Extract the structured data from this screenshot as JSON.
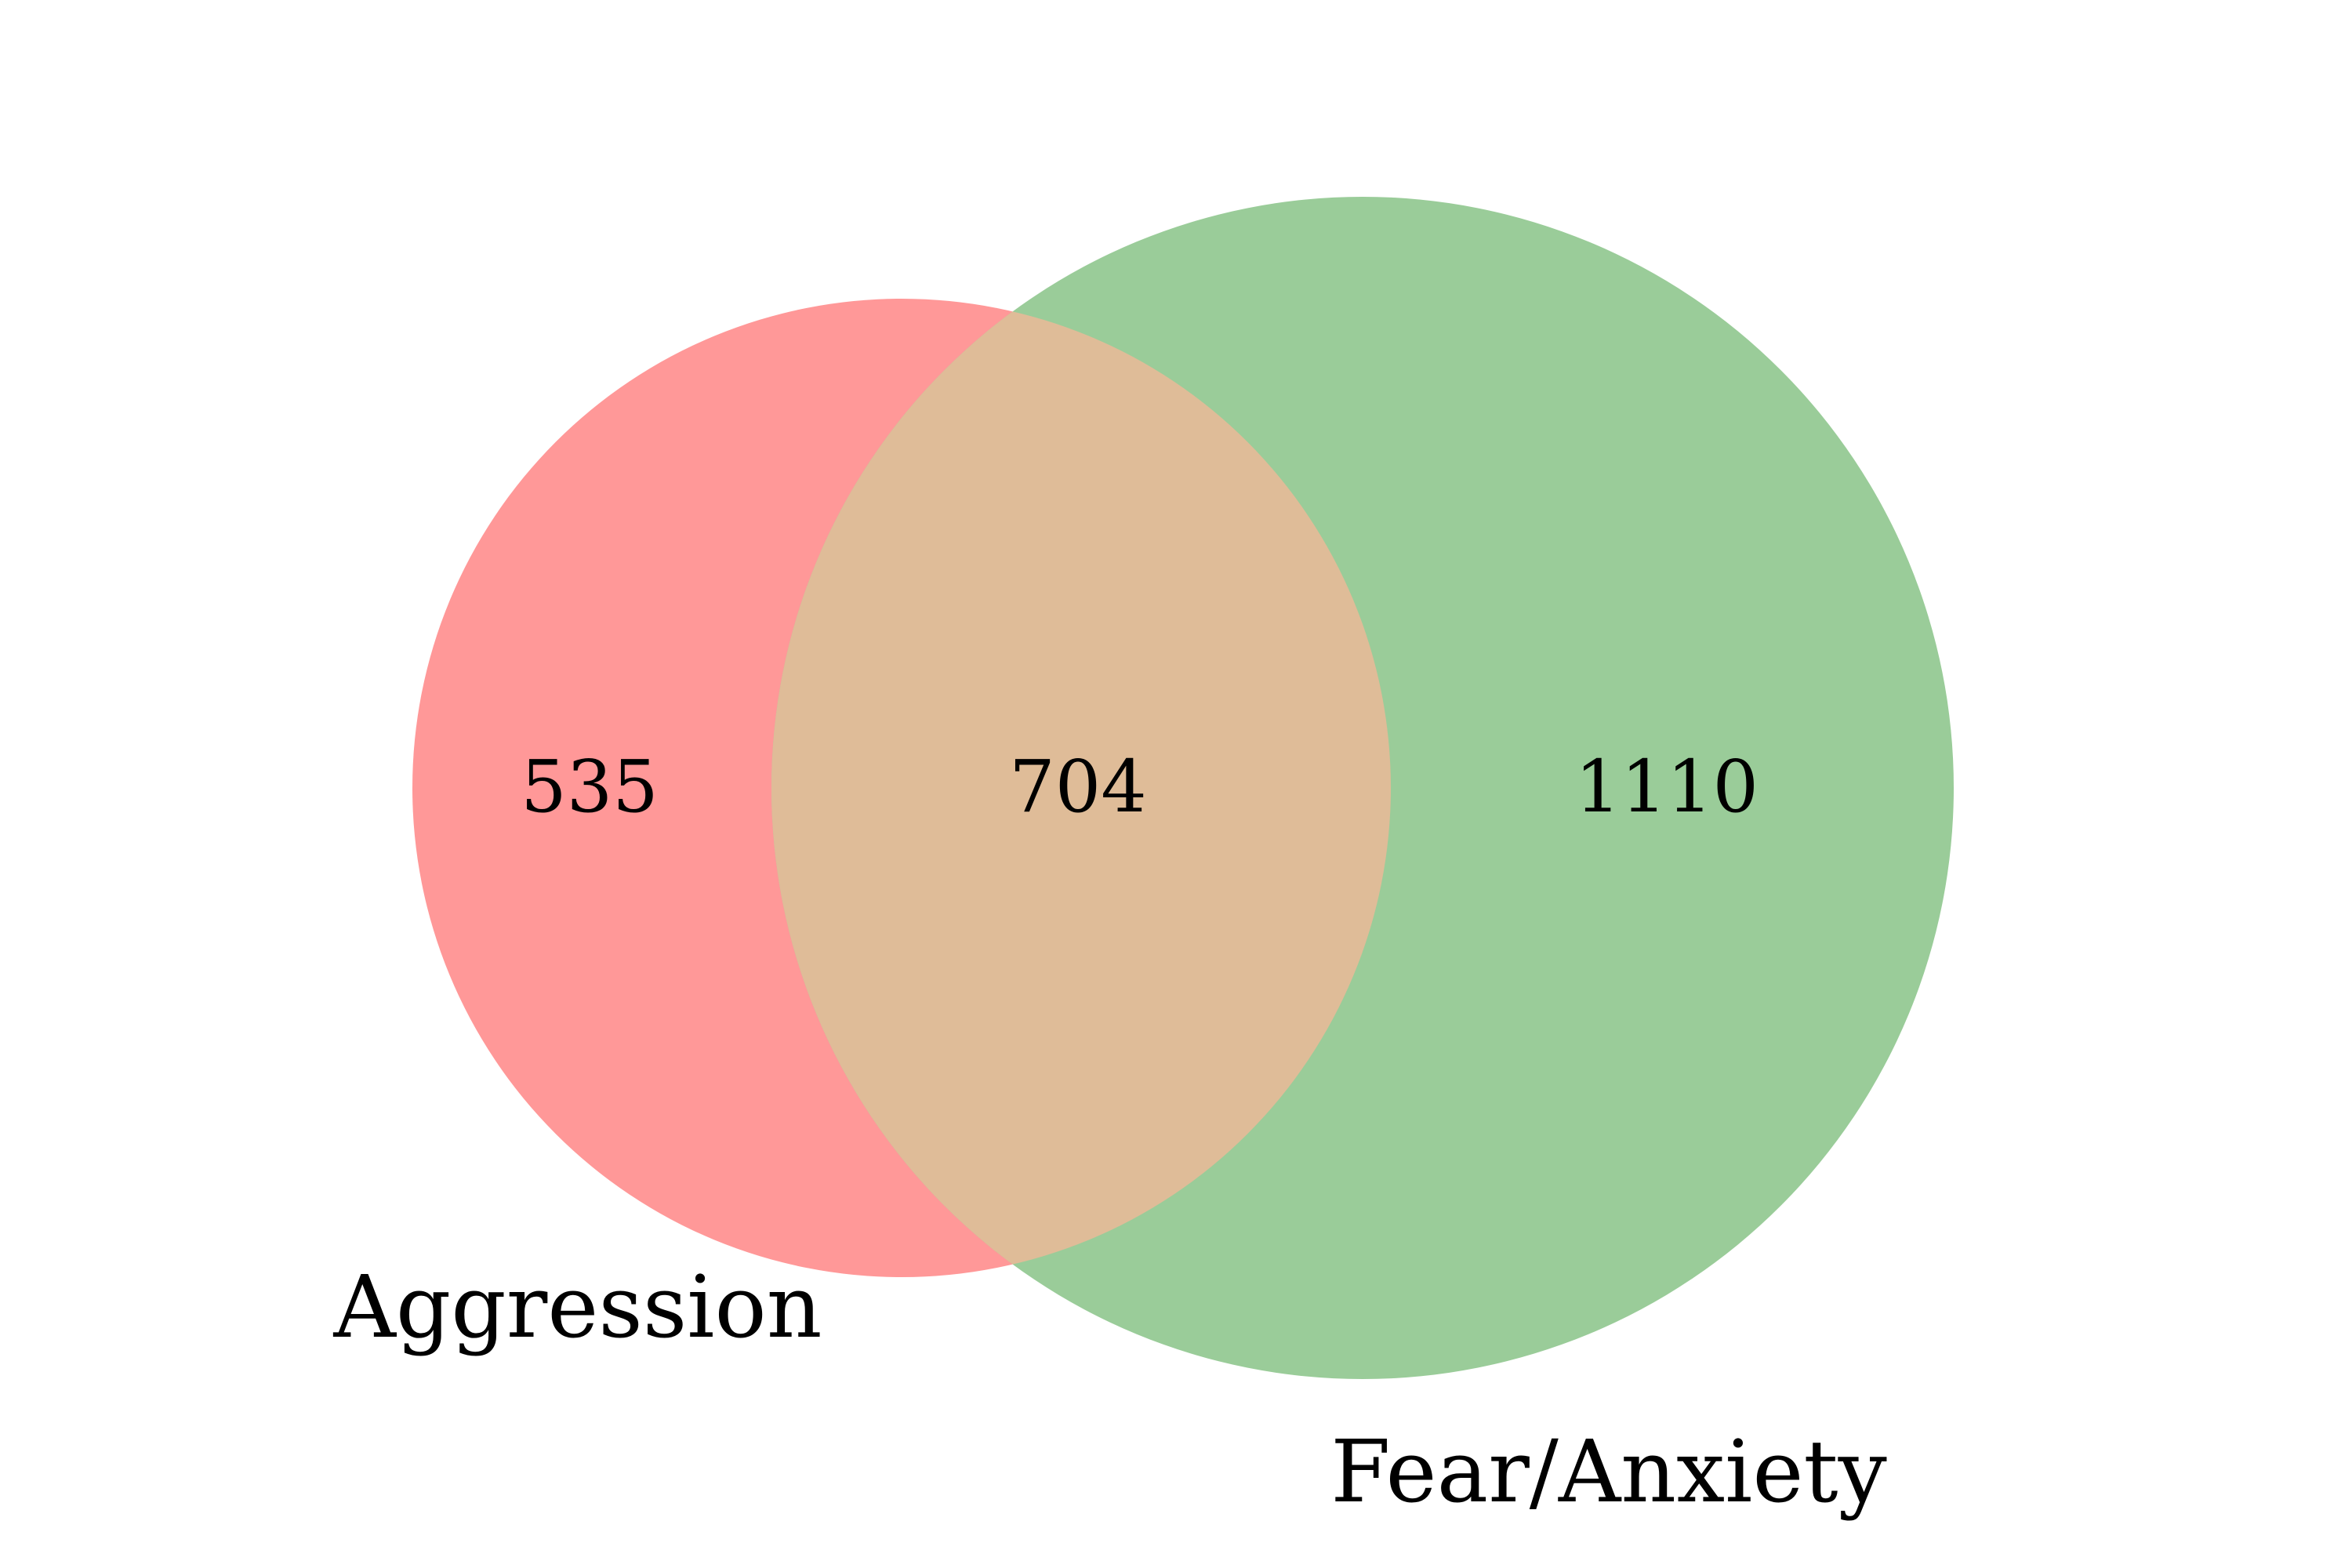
{
  "diagram": {
    "type": "venn2",
    "sets": [
      {
        "name": "Aggression",
        "size": 1239,
        "color": "#ff9898"
      },
      {
        "name": "Fear/Anxiety",
        "size": 1814,
        "color": "#9acc99"
      }
    ],
    "regions": {
      "a_only": "535",
      "intersection": "704",
      "b_only": "1110"
    },
    "intersection_color": "#dfbc98"
  }
}
